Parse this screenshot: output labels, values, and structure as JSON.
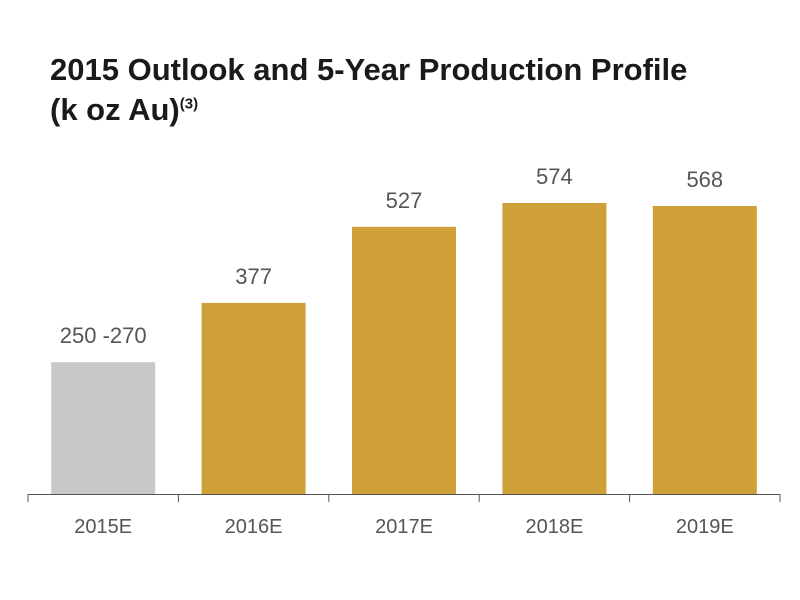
{
  "title": {
    "line1": "2015 Outlook and 5-Year Production Profile",
    "line2": "(k oz Au)",
    "superscript": "(3)"
  },
  "colors": {
    "outlook": "#c8c8c8",
    "profile": "#cf9f38",
    "axis": "#555555"
  },
  "chart_data": {
    "type": "bar",
    "categories": [
      "2015E",
      "2016E",
      "2017E",
      "2018E",
      "2019E"
    ],
    "values": [
      260,
      377,
      527,
      574,
      568
    ],
    "value_labels": [
      "250 -270",
      "377",
      "527",
      "574",
      "568"
    ],
    "ranges": [
      [
        250,
        270
      ],
      null,
      null,
      null,
      null
    ],
    "bar_color_keys": [
      "outlook",
      "profile",
      "profile",
      "profile",
      "profile"
    ],
    "title": "2015 Outlook and 5-Year Production Profile (k oz Au)(3)",
    "xlabel": "",
    "ylabel": "",
    "ylim": [
      0,
      700
    ],
    "grid": false,
    "legend": "none"
  }
}
